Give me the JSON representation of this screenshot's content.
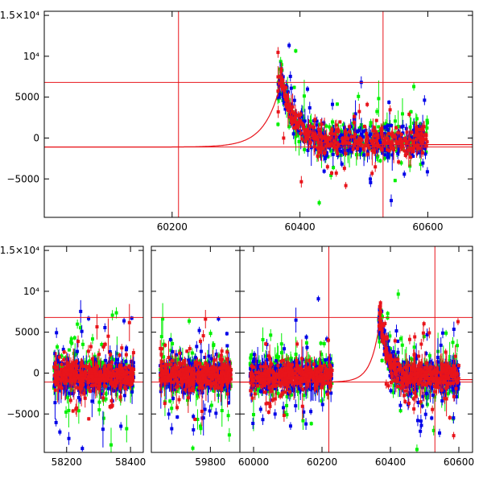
{
  "chart_data": [
    {
      "type": "scatter",
      "panel": "top",
      "title": "",
      "xlabel": "",
      "ylabel": "",
      "xlim": [
        60000,
        60670
      ],
      "ylim": [
        -9700,
        15500
      ],
      "grid": false,
      "legend": "none",
      "x_ticks": [
        {
          "value": 60200,
          "label": "60200"
        },
        {
          "value": 60400,
          "label": "60400"
        },
        {
          "value": 60600,
          "label": "60600"
        }
      ],
      "y_ticks": [
        {
          "value": 15000,
          "label": "1.5×10⁴"
        },
        {
          "value": 10000,
          "label": "10⁴"
        },
        {
          "value": 5000,
          "label": "5000"
        },
        {
          "value": 0,
          "label": "0"
        },
        {
          "value": -5000,
          "label": "−5000"
        }
      ],
      "reference_lines": {
        "horizontal": [
          6800,
          -1100
        ],
        "vertical": [
          60210,
          60530
        ]
      },
      "model_curve": {
        "color": "#e8141b",
        "peak_x": 60370,
        "peak_y": 6700,
        "baseline": -1100,
        "rise_tau": 25,
        "decay_tau": 20
      },
      "series": [
        {
          "color": "#00f000",
          "segments": [
            [
              60365,
              60600
            ]
          ],
          "center": -200,
          "scatter": 1000
        },
        {
          "color": "#0000e8",
          "segments": [
            [
              60365,
              60600
            ]
          ],
          "center": -400,
          "scatter": 900
        },
        {
          "color": "#e8141b",
          "segments": [
            [
              60365,
              60600
            ]
          ],
          "center": -300,
          "scatter": 700
        }
      ]
    },
    {
      "type": "scatter",
      "panel": "bottom",
      "title": "",
      "xlabel": "",
      "ylabel": "",
      "ylim": [
        -9700,
        15500
      ],
      "grid": false,
      "legend": "none",
      "x_ticks": [
        {
          "value": 58200,
          "label": "58200"
        },
        {
          "value": 58400,
          "label": "58400"
        },
        {
          "value": 59800,
          "label": "59800"
        },
        {
          "value": 60000,
          "label": "60000"
        },
        {
          "value": 60200,
          "label": "60200"
        },
        {
          "value": 60400,
          "label": "60400"
        },
        {
          "value": 60600,
          "label": "60600"
        }
      ],
      "y_ticks": [
        {
          "value": 15000,
          "label": "1.5×10⁴"
        },
        {
          "value": 10000,
          "label": "10⁴"
        },
        {
          "value": 5000,
          "label": "5000"
        },
        {
          "value": 0,
          "label": "0"
        },
        {
          "value": -5000,
          "label": "−5000"
        }
      ],
      "reference_lines": {
        "horizontal": [
          6800,
          -1100
        ],
        "vertical": [
          60220,
          60530
        ]
      },
      "model_curve": {
        "color": "#e8141b",
        "peak_x": 60370,
        "peak_y": 6700,
        "baseline": -1100,
        "rise_tau": 25,
        "decay_tau": 20
      },
      "series": [
        {
          "color": "#00f000",
          "segments": [
            [
              58160,
              58410
            ],
            [
              59630,
              59870
            ],
            [
              59990,
              60230
            ],
            [
              60365,
              60600
            ]
          ],
          "center": -200,
          "scatter": 1000
        },
        {
          "color": "#0000e8",
          "segments": [
            [
              58160,
              58410
            ],
            [
              59630,
              59870
            ],
            [
              59990,
              60230
            ],
            [
              60365,
              60600
            ]
          ],
          "center": -400,
          "scatter": 900
        },
        {
          "color": "#e8141b",
          "segments": [
            [
              58160,
              58410
            ],
            [
              59630,
              59870
            ],
            [
              59990,
              60230
            ],
            [
              60365,
              60600
            ]
          ],
          "center": -300,
          "scatter": 700
        }
      ]
    }
  ]
}
